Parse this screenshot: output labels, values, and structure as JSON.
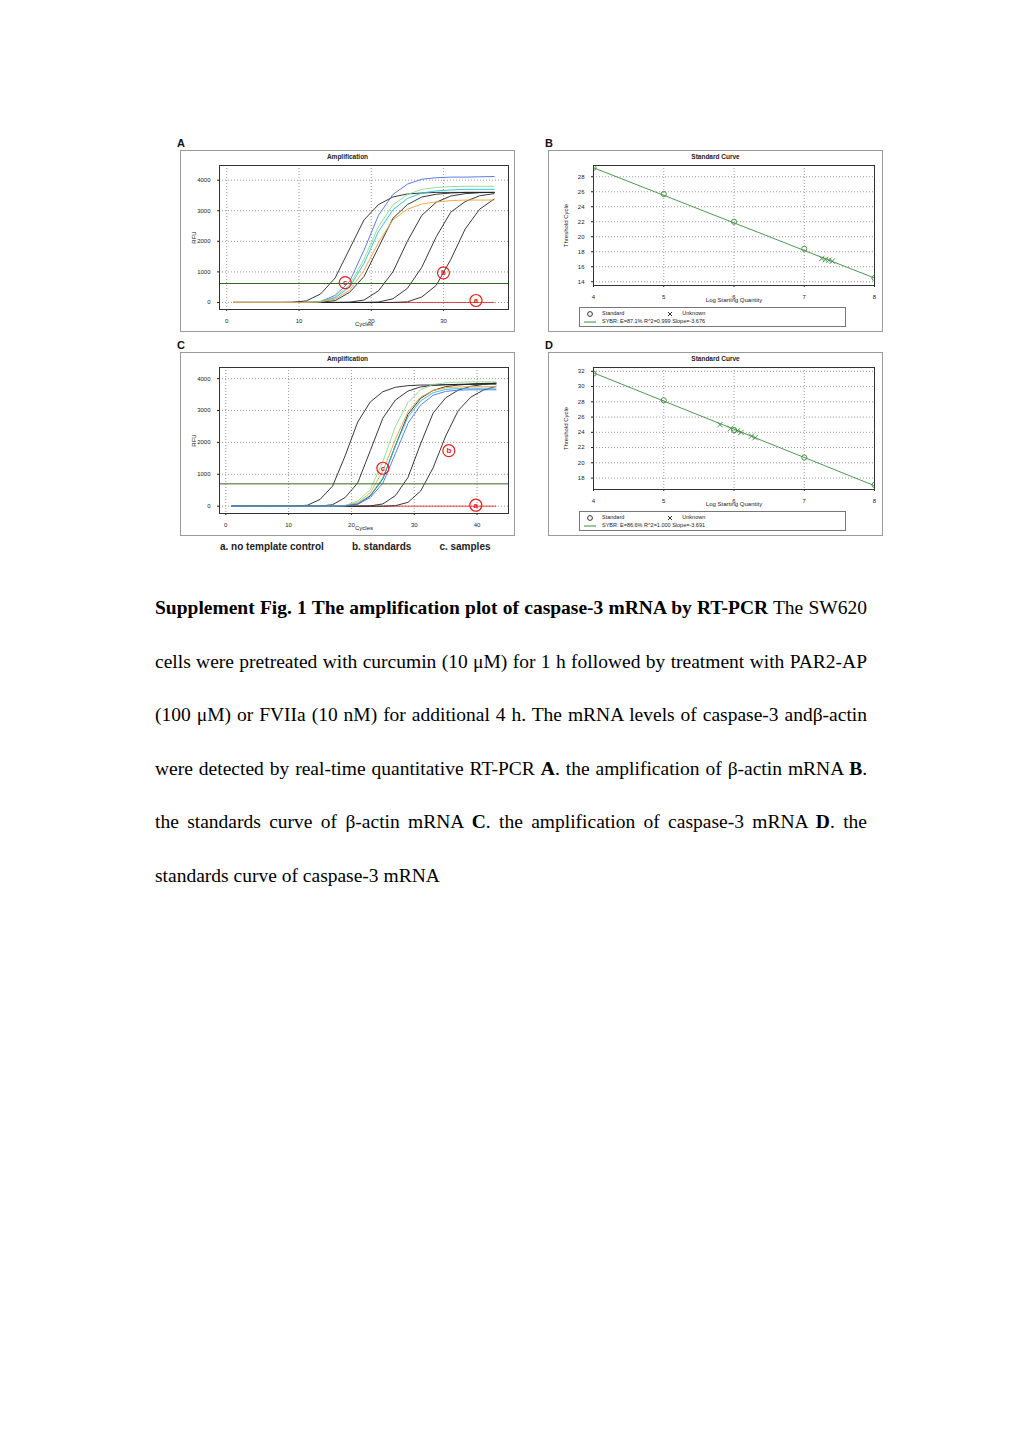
{
  "figure": {
    "keys": [
      "a. no template control",
      "b. standards",
      "c. samples"
    ]
  },
  "chart_data": [
    {
      "panel": "A",
      "type": "line",
      "title": "Amplification",
      "x_label": "Cycles",
      "y_label": "RFU",
      "x": [
        1,
        3,
        5,
        7,
        9,
        11,
        13,
        15,
        17,
        19,
        21,
        23,
        25,
        27,
        29,
        31,
        33,
        35,
        37
      ],
      "xlim": [
        -1,
        39
      ],
      "xticks": [
        0,
        10,
        20,
        30
      ],
      "ylim": [
        -230,
        4480
      ],
      "yticks": [
        0,
        1000,
        2000,
        3000,
        4000
      ],
      "grid": true,
      "threshold": {
        "value": 620,
        "color": "#2f6b1f"
      },
      "series": [
        {
          "color": "#e03030",
          "values": [
            0,
            0,
            0,
            0,
            0,
            0,
            0,
            0,
            0,
            0,
            0,
            0,
            0,
            0,
            0,
            0,
            0,
            0,
            0
          ]
        },
        {
          "color": "#222222",
          "values": [
            0,
            0,
            0,
            0,
            5,
            50,
            280,
            800,
            1750,
            2700,
            3200,
            3450,
            3550,
            3580,
            3600,
            3600,
            3600,
            3600,
            3600
          ]
        },
        {
          "color": "#222222",
          "values": [
            0,
            0,
            0,
            0,
            0,
            0,
            10,
            60,
            330,
            850,
            1800,
            2750,
            3200,
            3450,
            3540,
            3580,
            3600,
            3600,
            3600
          ]
        },
        {
          "color": "#222222",
          "values": [
            0,
            0,
            0,
            0,
            0,
            0,
            0,
            0,
            10,
            80,
            380,
            1000,
            2000,
            2850,
            3280,
            3480,
            3560,
            3590,
            3600
          ]
        },
        {
          "color": "#222222",
          "values": [
            0,
            0,
            0,
            0,
            0,
            0,
            0,
            0,
            0,
            0,
            15,
            120,
            460,
            1150,
            2150,
            2950,
            3300,
            3490,
            3560
          ]
        },
        {
          "color": "#222222",
          "values": [
            0,
            0,
            0,
            0,
            0,
            0,
            0,
            0,
            0,
            0,
            0,
            0,
            20,
            180,
            560,
            1400,
            2400,
            3050,
            3380
          ]
        },
        {
          "color": "#4a6fe0",
          "values": [
            0,
            0,
            0,
            0,
            0,
            2,
            35,
            230,
            680,
            1710,
            2850,
            3530,
            3870,
            4030,
            4080,
            4100,
            4100,
            4110,
            4120
          ]
        },
        {
          "color": "#8fd88f",
          "values": [
            0,
            0,
            0,
            0,
            0,
            0,
            30,
            180,
            570,
            1420,
            2480,
            3190,
            3530,
            3700,
            3760,
            3790,
            3800,
            3800,
            3800
          ]
        },
        {
          "color": "#20c0d8",
          "values": [
            0,
            0,
            0,
            0,
            0,
            0,
            25,
            150,
            500,
            1280,
            2320,
            3030,
            3400,
            3580,
            3650,
            3680,
            3700,
            3700,
            3700
          ]
        },
        {
          "color": "#f0a030",
          "values": [
            0,
            0,
            0,
            0,
            0,
            0,
            18,
            110,
            400,
            1050,
            1960,
            2700,
            3050,
            3220,
            3290,
            3330,
            3350,
            3350,
            3350
          ]
        }
      ],
      "annotations": [
        {
          "text": "c",
          "x": 16.4,
          "y": 650,
          "color": "#e02020"
        },
        {
          "text": "b",
          "x": 30,
          "y": 970,
          "color": "#e02020"
        },
        {
          "text": "a",
          "x": 34.5,
          "y": 65,
          "color": "#e02020"
        }
      ]
    },
    {
      "panel": "B",
      "type": "scatter",
      "title": "Standard Curve",
      "x_label": "Log Starting Quantity",
      "y_label": "Threshold Cycle",
      "xlim": [
        4,
        8
      ],
      "xticks": [
        4,
        5,
        6,
        7,
        8
      ],
      "ylim": [
        13.5,
        29.5
      ],
      "yticks": [
        14,
        16,
        18,
        20,
        22,
        24,
        26,
        28
      ],
      "grid": true,
      "color": "#3c8c3c",
      "legend": "bottom",
      "series": [
        {
          "name": "Standard",
          "type": "scatter",
          "marker": "circle",
          "x": [
            4,
            5,
            6,
            7,
            8
          ],
          "values": [
            29.2,
            25.7,
            22.0,
            18.4,
            14.5
          ]
        },
        {
          "name": "Unknown",
          "type": "scatter",
          "marker": "x",
          "x": [
            7.25,
            7.3,
            7.35,
            7.4
          ],
          "values": [
            17.1,
            16.95,
            16.85,
            16.75
          ]
        },
        {
          "name": "SYBR: E=87.1% R^2=0.999 Slope=-3.676",
          "type": "line",
          "line_style": "solid",
          "x": [
            4,
            8
          ],
          "values": [
            29.2,
            14.5
          ]
        }
      ]
    },
    {
      "panel": "C",
      "type": "line",
      "title": "Amplification",
      "x_label": "Cycles",
      "y_label": "RFU",
      "x": [
        1,
        3,
        5,
        7,
        9,
        11,
        13,
        15,
        17,
        19,
        21,
        23,
        25,
        27,
        29,
        31,
        33,
        35,
        37,
        39,
        41,
        43
      ],
      "xlim": [
        -1,
        45
      ],
      "xticks": [
        0,
        10,
        20,
        30,
        40
      ],
      "ylim": [
        -230,
        4350
      ],
      "yticks": [
        0,
        1000,
        2000,
        3000,
        4000
      ],
      "grid": true,
      "threshold": {
        "value": 700,
        "color": "#2f6b1f"
      },
      "series": [
        {
          "color": "#e03030",
          "values": [
            0,
            0,
            0,
            0,
            0,
            0,
            0,
            0,
            0,
            0,
            0,
            0,
            0,
            0,
            0,
            0,
            0,
            0,
            0,
            0,
            0,
            0
          ]
        },
        {
          "color": "#222222",
          "values": [
            0,
            0,
            0,
            0,
            0,
            2,
            30,
            210,
            630,
            1580,
            2640,
            3270,
            3590,
            3730,
            3780,
            3800,
            3800,
            3810,
            3820,
            3820,
            3830,
            3830
          ]
        },
        {
          "color": "#222222",
          "values": [
            0,
            0,
            0,
            0,
            0,
            0,
            0,
            5,
            45,
            270,
            730,
            1740,
            2760,
            3330,
            3610,
            3740,
            3790,
            3810,
            3820,
            3830,
            3840,
            3840
          ]
        },
        {
          "color": "#222222",
          "values": [
            0,
            0,
            0,
            0,
            0,
            0,
            0,
            0,
            0,
            8,
            65,
            320,
            860,
            1900,
            2880,
            3380,
            3630,
            3750,
            3800,
            3830,
            3850,
            3860
          ]
        },
        {
          "color": "#222222",
          "values": [
            0,
            0,
            0,
            0,
            0,
            0,
            0,
            0,
            0,
            0,
            0,
            8,
            70,
            330,
            900,
            1950,
            2920,
            3400,
            3640,
            3760,
            3820,
            3860
          ]
        },
        {
          "color": "#222222",
          "values": [
            0,
            0,
            0,
            0,
            0,
            0,
            0,
            0,
            0,
            0,
            0,
            0,
            0,
            15,
            120,
            470,
            1200,
            2200,
            3000,
            3420,
            3640,
            3760
          ]
        },
        {
          "color": "#8fd88f",
          "values": [
            0,
            0,
            0,
            0,
            0,
            0,
            0,
            0,
            3,
            25,
            160,
            520,
            1400,
            2500,
            3250,
            3650,
            3820,
            3870,
            3890,
            3900,
            3900,
            3900
          ]
        },
        {
          "color": "#f0a030",
          "values": [
            0,
            0,
            0,
            0,
            0,
            0,
            0,
            0,
            2,
            15,
            110,
            420,
            1100,
            2100,
            2960,
            3420,
            3630,
            3710,
            3740,
            3750,
            3750,
            3750
          ]
        },
        {
          "color": "#20c0d8",
          "values": [
            0,
            0,
            0,
            0,
            0,
            0,
            0,
            0,
            0,
            10,
            80,
            340,
            880,
            1900,
            2800,
            3300,
            3560,
            3660,
            3690,
            3700,
            3700,
            3700
          ]
        },
        {
          "color": "#4a6fe0",
          "values": [
            0,
            0,
            0,
            0,
            0,
            0,
            0,
            0,
            0,
            6,
            60,
            270,
            720,
            1650,
            2600,
            3170,
            3480,
            3600,
            3640,
            3650,
            3650,
            3650
          ]
        }
      ],
      "annotations": [
        {
          "text": "c",
          "x": 25,
          "y": 1190,
          "color": "#e02020"
        },
        {
          "text": "b",
          "x": 35.5,
          "y": 1740,
          "color": "#e02020"
        },
        {
          "text": "a",
          "x": 39.8,
          "y": 30,
          "color": "#e02020"
        }
      ]
    },
    {
      "panel": "D",
      "type": "scatter",
      "title": "Standard Curve",
      "x_label": "Log Starting Quantity",
      "y_label": "Threshold Cycle",
      "xlim": [
        4,
        8
      ],
      "xticks": [
        4,
        5,
        6,
        7,
        8
      ],
      "ylim": [
        16.5,
        32.5
      ],
      "yticks": [
        18,
        20,
        22,
        24,
        26,
        28,
        30,
        32
      ],
      "grid": true,
      "color": "#3c8c3c",
      "legend": "bottom",
      "series": [
        {
          "name": "Standard",
          "type": "scatter",
          "marker": "circle",
          "x": [
            4,
            5,
            6,
            7,
            8
          ],
          "values": [
            31.7,
            28.2,
            24.3,
            20.7,
            17.1
          ]
        },
        {
          "name": "Unknown",
          "type": "scatter",
          "marker": "x",
          "x": [
            5.8,
            5.95,
            6.05,
            6.1,
            6.25,
            6.3
          ],
          "values": [
            25.0,
            24.5,
            24.2,
            24.0,
            23.5,
            23.3
          ]
        },
        {
          "name": "SYBR: E=86.6% R^2=1.000 Slope=-3.691",
          "type": "line",
          "line_style": "solid",
          "x": [
            4,
            8
          ],
          "values": [
            31.8,
            17.0
          ]
        }
      ]
    }
  ],
  "caption": [
    {
      "text": "Supplement Fig. 1  The amplification plot of caspase-3 mRNA by RT-PCR",
      "bold": true
    },
    {
      "text": "  The SW620 cells were pretreated with curcumin (10 μM) for 1 h followed by treatment with PAR2-AP (100 μM) or FVIIa (10 nM) for additional 4 h. The mRNA levels of caspase-3 andβ-actin were detected by real-time quantitative RT-PCR ",
      "bold": false
    },
    {
      "text": "A",
      "bold": true
    },
    {
      "text": ". the amplification of β-actin mRNA  ",
      "bold": false
    },
    {
      "text": "B",
      "bold": true
    },
    {
      "text": ". the standards curve of β-actin mRNA  ",
      "bold": false
    },
    {
      "text": "C",
      "bold": true
    },
    {
      "text": ". the amplification of caspase-3 mRNA  ",
      "bold": false
    },
    {
      "text": "D",
      "bold": true
    },
    {
      "text": ". the standards curve of caspase-3 mRNA",
      "bold": false
    }
  ]
}
